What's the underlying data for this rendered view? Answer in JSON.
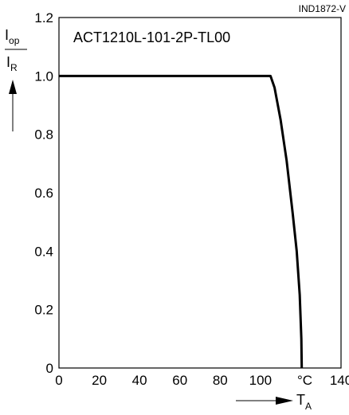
{
  "chart_data": {
    "type": "line",
    "ref_code": "IND1872-V",
    "title": "ACT1210L-101-2P-TL00",
    "ylabel": {
      "numerator": "I",
      "numerator_sub": "op",
      "denominator": "I",
      "denominator_sub": "R"
    },
    "xlabel": {
      "main": "T",
      "sub": "A"
    },
    "x_unit": "°C",
    "xlim": [
      0,
      140
    ],
    "ylim": [
      0,
      1.2
    ],
    "x_ticks": [
      {
        "value": 0,
        "label": "0"
      },
      {
        "value": 20,
        "label": "20"
      },
      {
        "value": 40,
        "label": "40"
      },
      {
        "value": 60,
        "label": "60"
      },
      {
        "value": 80,
        "label": "80"
      },
      {
        "value": 100,
        "label": "100"
      },
      {
        "value": 140,
        "label": "140"
      }
    ],
    "y_ticks": [
      {
        "value": 0,
        "label": "0"
      },
      {
        "value": 0.2,
        "label": "0.2"
      },
      {
        "value": 0.4,
        "label": "0.4"
      },
      {
        "value": 0.6,
        "label": "0.6"
      },
      {
        "value": 0.8,
        "label": "0.8"
      },
      {
        "value": 1.0,
        "label": "1.0"
      },
      {
        "value": 1.2,
        "label": "1.2"
      }
    ],
    "x_grid": [
      20,
      40,
      60,
      80,
      100,
      120
    ],
    "y_grid": [
      0.2,
      0.4,
      0.6,
      0.8,
      1.0
    ],
    "grid": true,
    "series": [
      {
        "points": [
          [
            0,
            1.0
          ],
          [
            105,
            1.0
          ],
          [
            107,
            0.96
          ],
          [
            110,
            0.85
          ],
          [
            113,
            0.71
          ],
          [
            116,
            0.53
          ],
          [
            118,
            0.4
          ],
          [
            119.5,
            0.25
          ],
          [
            120.3,
            0.1
          ],
          [
            120.5,
            0.0
          ]
        ]
      }
    ],
    "colors": {
      "line": "#000000",
      "grid": "#000000",
      "background": "#ffffff"
    }
  }
}
